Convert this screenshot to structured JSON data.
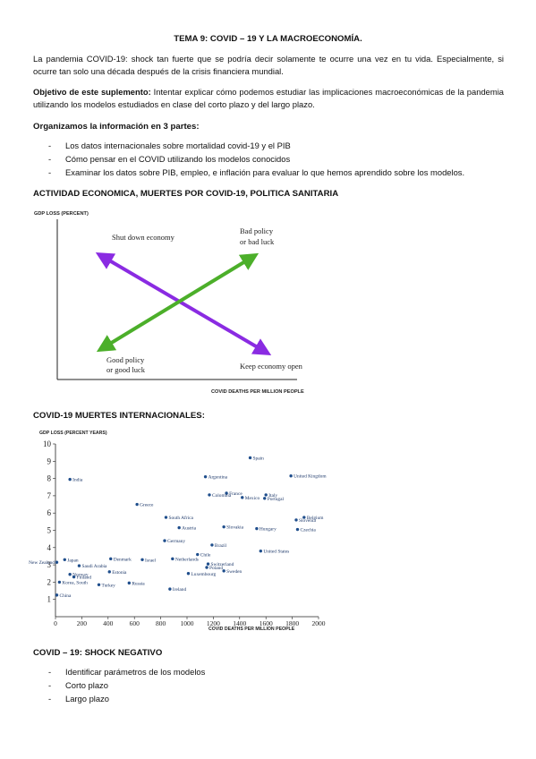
{
  "title": "TEMA 9: COVID – 19 Y LA MACROECONOMÍA.",
  "intro": "La pandemia COVID-19: shock tan fuerte que se podría decir solamente te ocurre una vez en tu vida. Especialmente, si ocurre tan solo una década después de la crisis financiera mundial.",
  "objective": {
    "label": "Objetivo de este suplemento:",
    "text": " Intentar explicar cómo podemos estudiar las implicaciones macroeconómicas de la pandemia utilizando los modelos estudiados en clase del corto plazo y del largo plazo."
  },
  "organize_heading": "Organizamos la información en 3 partes:",
  "parts": [
    "Los datos internacionales sobre mortalidad covid-19 y el PIB",
    "Cómo pensar en el COVID utilizando los modelos conocidos",
    "Examinar los datos sobre PIB, empleo, e inflación para evaluar lo que hemos aprendido sobre los modelos."
  ],
  "section1_heading": "ACTIVIDAD ECONOMICA, MUERTES POR COVID-19, POLITICA SANITARIA",
  "diagram": {
    "y_label": "GDP LOSS (PERCENT)",
    "x_label": "COVID DEATHS PER MILLION PEOPLE",
    "shut_down": "Shut down economy",
    "bad_policy_line1": "Bad policy",
    "bad_policy_line2": "or bad luck",
    "good_policy_line1": "Good policy",
    "good_policy_line2": "or good luck",
    "keep_open": "Keep economy open",
    "purple": "#8a2be2",
    "green": "#4caf2a"
  },
  "section2_heading": "COVID-19 MUERTES INTERNACIONALES:",
  "chart_data": {
    "type": "scatter",
    "ylabel": "GDP LOSS (PERCENT YEARS)",
    "xlabel": "COVID DEATHS PER MILLION PEOPLE",
    "xlim": [
      0,
      2000
    ],
    "ylim": [
      0,
      10
    ],
    "xticks": [
      0,
      200,
      400,
      600,
      800,
      1000,
      1200,
      1400,
      1600,
      1800,
      2000
    ],
    "yticks": [
      1,
      2,
      3,
      4,
      5,
      6,
      7,
      8,
      9,
      10
    ],
    "point_color": "#1f4e8c",
    "points": [
      {
        "label": "Spain",
        "x": 1480,
        "y": 9.2
      },
      {
        "label": "India",
        "x": 110,
        "y": 7.95
      },
      {
        "label": "Argentina",
        "x": 1140,
        "y": 8.1
      },
      {
        "label": "United Kingdom",
        "x": 1790,
        "y": 8.15
      },
      {
        "label": "France",
        "x": 1300,
        "y": 7.15
      },
      {
        "label": "Colombia",
        "x": 1170,
        "y": 7.05
      },
      {
        "label": "Mexico",
        "x": 1420,
        "y": 6.9
      },
      {
        "label": "Italy",
        "x": 1600,
        "y": 7.05
      },
      {
        "label": "Portugal",
        "x": 1590,
        "y": 6.85
      },
      {
        "label": "Greece",
        "x": 620,
        "y": 6.5
      },
      {
        "label": "South Africa",
        "x": 840,
        "y": 5.75
      },
      {
        "label": "Slovenia",
        "x": 1830,
        "y": 5.6
      },
      {
        "label": "Belgium",
        "x": 1890,
        "y": 5.75
      },
      {
        "label": "Austria",
        "x": 940,
        "y": 5.15
      },
      {
        "label": "Slovakia",
        "x": 1280,
        "y": 5.2
      },
      {
        "label": "Hungary",
        "x": 1530,
        "y": 5.1
      },
      {
        "label": "Czechia",
        "x": 1840,
        "y": 5.05
      },
      {
        "label": "Germany",
        "x": 830,
        "y": 4.4
      },
      {
        "label": "Brazil",
        "x": 1190,
        "y": 4.15
      },
      {
        "label": "United States",
        "x": 1560,
        "y": 3.8
      },
      {
        "label": "Chile",
        "x": 1080,
        "y": 3.6
      },
      {
        "label": "Netherlands",
        "x": 890,
        "y": 3.35
      },
      {
        "label": "Denmark",
        "x": 420,
        "y": 3.35
      },
      {
        "label": "Israel",
        "x": 660,
        "y": 3.3
      },
      {
        "label": "Japan",
        "x": 70,
        "y": 3.3
      },
      {
        "label": "New Zealand",
        "x": 10,
        "y": 3.15
      },
      {
        "label": "Switzerland",
        "x": 1160,
        "y": 3.05
      },
      {
        "label": "Poland",
        "x": 1150,
        "y": 2.85
      },
      {
        "label": "Saudi Arabia",
        "x": 180,
        "y": 2.95
      },
      {
        "label": "Sweden",
        "x": 1280,
        "y": 2.65
      },
      {
        "label": "Luxembourg",
        "x": 1010,
        "y": 2.5
      },
      {
        "label": "Estonia",
        "x": 410,
        "y": 2.6
      },
      {
        "label": "Norway",
        "x": 110,
        "y": 2.45
      },
      {
        "label": "Finland",
        "x": 140,
        "y": 2.3
      },
      {
        "label": "Korea, South",
        "x": 30,
        "y": 2.0
      },
      {
        "label": "Turkey",
        "x": 330,
        "y": 1.85
      },
      {
        "label": "Russia",
        "x": 560,
        "y": 1.95
      },
      {
        "label": "Ireland",
        "x": 870,
        "y": 1.6
      },
      {
        "label": "China",
        "x": 10,
        "y": 1.25
      }
    ]
  },
  "section3_heading": "COVID – 19: SHOCK NEGATIVO",
  "items3": [
    "Identificar parámetros de los modelos",
    "Corto plazo",
    "Largo plazo"
  ]
}
